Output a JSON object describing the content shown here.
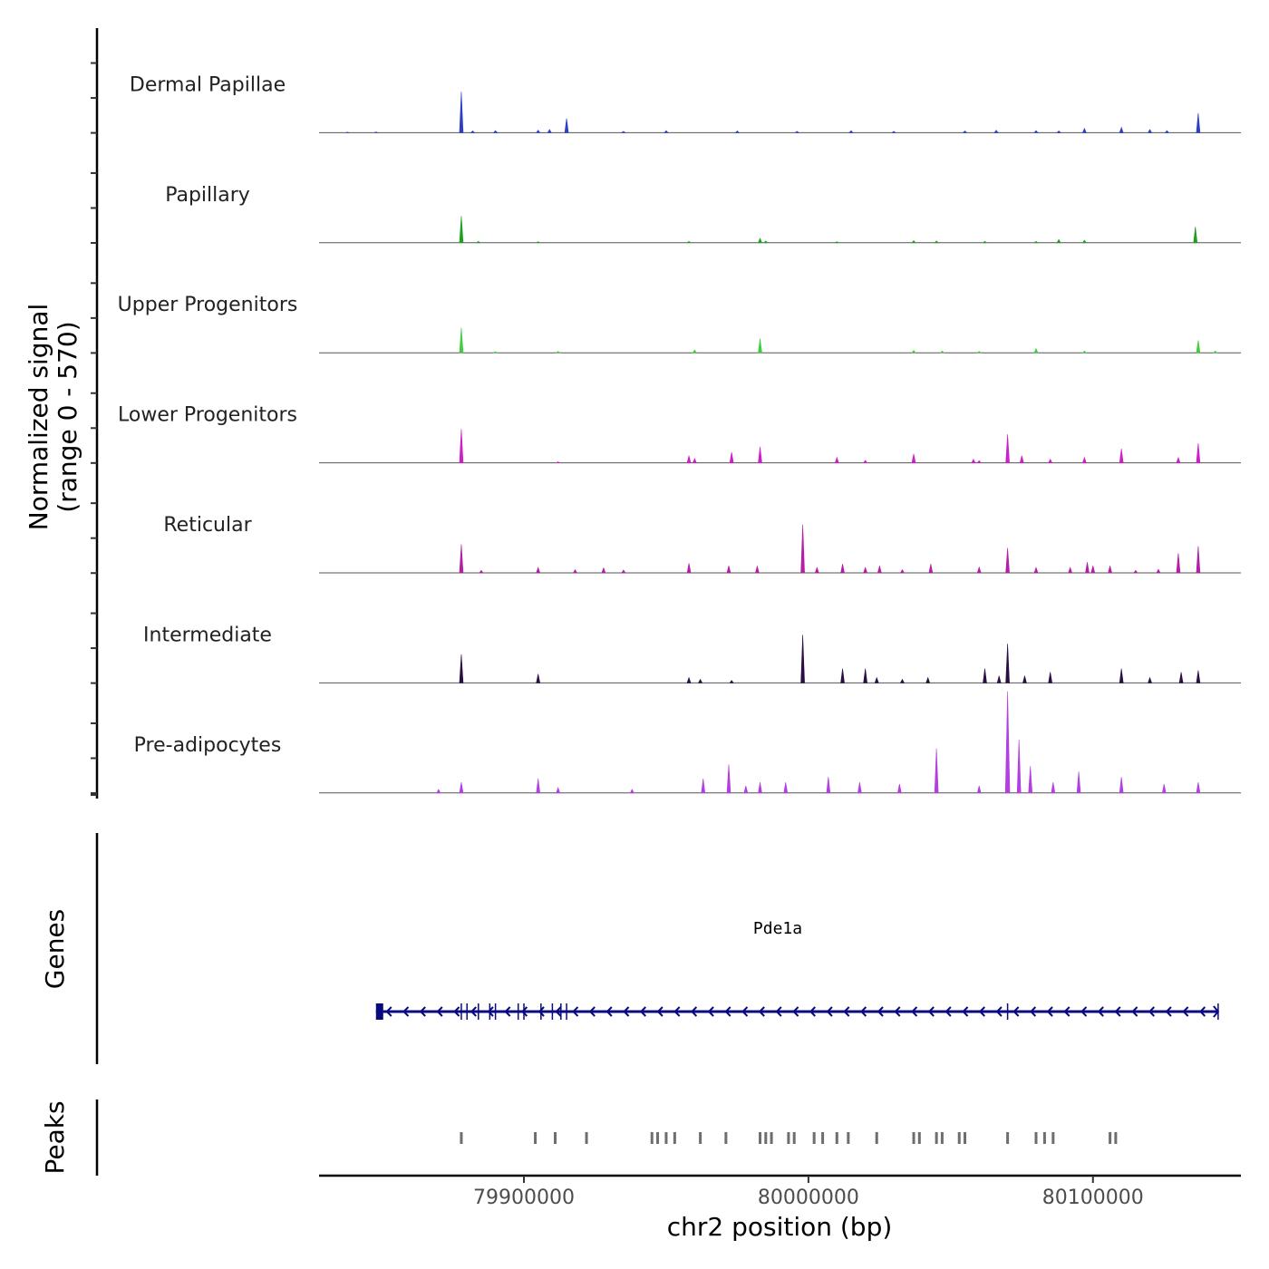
{
  "chart_data": {
    "type": "coverage",
    "chromosome": "chr2",
    "xlabel": "chr2 position (bp)",
    "xlim": [
      79828000,
      80152000
    ],
    "x_ticks": [
      {
        "value": 79900000,
        "label": "79900000"
      },
      {
        "value": 80000000,
        "label": "80000000"
      },
      {
        "value": 80100000,
        "label": "80100000"
      }
    ],
    "ylabel_line1": "Normalized signal",
    "ylabel_line2": "(range 0 - 570)",
    "ylim": [
      0,
      570
    ],
    "gene_track_label": "Genes",
    "peak_track_label": "Peaks",
    "series": [
      {
        "name": "Dermal Papillae",
        "color": "#2b3fc7",
        "peaks": [
          [
            79838000,
            3
          ],
          [
            79848000,
            4
          ],
          [
            79878000,
            230
          ],
          [
            79882000,
            10
          ],
          [
            79890000,
            12
          ],
          [
            79905000,
            14
          ],
          [
            79909000,
            18
          ],
          [
            79915000,
            80
          ],
          [
            79935000,
            8
          ],
          [
            79950000,
            12
          ],
          [
            79975000,
            10
          ],
          [
            79996000,
            8
          ],
          [
            80015000,
            12
          ],
          [
            80030000,
            8
          ],
          [
            80055000,
            10
          ],
          [
            80066000,
            14
          ],
          [
            80080000,
            12
          ],
          [
            80088000,
            10
          ],
          [
            80097000,
            24
          ],
          [
            80110000,
            30
          ],
          [
            80120000,
            18
          ],
          [
            80126000,
            12
          ],
          [
            80137000,
            110
          ]
        ]
      },
      {
        "name": "Papillary",
        "color": "#1f9e1f",
        "peaks": [
          [
            79878000,
            150
          ],
          [
            79884000,
            8
          ],
          [
            79905000,
            6
          ],
          [
            79958000,
            8
          ],
          [
            79983000,
            25
          ],
          [
            79985000,
            10
          ],
          [
            80010000,
            6
          ],
          [
            80037000,
            12
          ],
          [
            80045000,
            10
          ],
          [
            80062000,
            8
          ],
          [
            80080000,
            8
          ],
          [
            80088000,
            18
          ],
          [
            80097000,
            14
          ],
          [
            80136000,
            90
          ]
        ]
      },
      {
        "name": "Upper Progenitors",
        "color": "#3fce3f",
        "peaks": [
          [
            79878000,
            140
          ],
          [
            79890000,
            6
          ],
          [
            79912000,
            8
          ],
          [
            79960000,
            16
          ],
          [
            79983000,
            80
          ],
          [
            80037000,
            14
          ],
          [
            80047000,
            10
          ],
          [
            80060000,
            8
          ],
          [
            80080000,
            24
          ],
          [
            80097000,
            10
          ],
          [
            80137000,
            70
          ],
          [
            80143000,
            10
          ]
        ]
      },
      {
        "name": "Lower Progenitors",
        "color": "#cf1ec9",
        "peaks": [
          [
            79878000,
            190
          ],
          [
            79912000,
            6
          ],
          [
            79958000,
            40
          ],
          [
            79960000,
            24
          ],
          [
            79973000,
            60
          ],
          [
            79983000,
            90
          ],
          [
            80010000,
            30
          ],
          [
            80020000,
            14
          ],
          [
            80037000,
            50
          ],
          [
            80058000,
            20
          ],
          [
            80060000,
            12
          ],
          [
            80070000,
            160
          ],
          [
            80075000,
            40
          ],
          [
            80085000,
            20
          ],
          [
            80097000,
            30
          ],
          [
            80110000,
            80
          ],
          [
            80130000,
            30
          ],
          [
            80137000,
            110
          ]
        ]
      },
      {
        "name": "Reticular",
        "color": "#b21fa6",
        "peaks": [
          [
            79878000,
            160
          ],
          [
            79885000,
            14
          ],
          [
            79905000,
            30
          ],
          [
            79918000,
            18
          ],
          [
            79928000,
            28
          ],
          [
            79935000,
            16
          ],
          [
            79958000,
            54
          ],
          [
            79972000,
            40
          ],
          [
            79982000,
            38
          ],
          [
            79998000,
            270
          ],
          [
            80003000,
            30
          ],
          [
            80012000,
            50
          ],
          [
            80020000,
            30
          ],
          [
            80025000,
            40
          ],
          [
            80033000,
            18
          ],
          [
            80043000,
            50
          ],
          [
            80060000,
            32
          ],
          [
            80070000,
            140
          ],
          [
            80080000,
            30
          ],
          [
            80092000,
            30
          ],
          [
            80098000,
            60
          ],
          [
            80100000,
            40
          ],
          [
            80106000,
            40
          ],
          [
            80115000,
            14
          ],
          [
            80123000,
            20
          ],
          [
            80130000,
            110
          ],
          [
            80137000,
            150
          ]
        ]
      },
      {
        "name": "Intermediate",
        "color": "#2a0f42",
        "peaks": [
          [
            79878000,
            160
          ],
          [
            79905000,
            50
          ],
          [
            79958000,
            30
          ],
          [
            79962000,
            20
          ],
          [
            79973000,
            14
          ],
          [
            79998000,
            270
          ],
          [
            80012000,
            80
          ],
          [
            80020000,
            80
          ],
          [
            80024000,
            30
          ],
          [
            80033000,
            20
          ],
          [
            80042000,
            30
          ],
          [
            80062000,
            80
          ],
          [
            80067000,
            40
          ],
          [
            80070000,
            220
          ],
          [
            80076000,
            40
          ],
          [
            80085000,
            60
          ],
          [
            80110000,
            80
          ],
          [
            80120000,
            30
          ],
          [
            80131000,
            60
          ],
          [
            80137000,
            70
          ]
        ]
      },
      {
        "name": "Pre-adipocytes",
        "color": "#b33fe0",
        "peaks": [
          [
            79870000,
            20
          ],
          [
            79878000,
            60
          ],
          [
            79905000,
            80
          ],
          [
            79912000,
            30
          ],
          [
            79938000,
            20
          ],
          [
            79963000,
            80
          ],
          [
            79972000,
            160
          ],
          [
            79978000,
            40
          ],
          [
            79983000,
            60
          ],
          [
            79992000,
            60
          ],
          [
            80007000,
            90
          ],
          [
            80018000,
            60
          ],
          [
            80032000,
            50
          ],
          [
            80045000,
            250
          ],
          [
            80060000,
            40
          ],
          [
            80070000,
            570
          ],
          [
            80074000,
            300
          ],
          [
            80078000,
            150
          ],
          [
            80086000,
            60
          ],
          [
            80095000,
            120
          ],
          [
            80110000,
            90
          ],
          [
            80125000,
            50
          ],
          [
            80137000,
            60
          ]
        ]
      }
    ],
    "gene": {
      "name": "Pde1a",
      "start": 79848000,
      "end": 80144000,
      "strand": "-",
      "color": "#0a0a80"
    },
    "peaks": [
      79878000,
      79904000,
      79911000,
      79922000,
      79945000,
      79947000,
      79950000,
      79953000,
      79962000,
      79971000,
      79983000,
      79985000,
      79987000,
      79993000,
      79995000,
      80002000,
      80005000,
      80010000,
      80014000,
      80024000,
      80037000,
      80039000,
      80045000,
      80047000,
      80053000,
      80055000,
      80070000,
      80080000,
      80083000,
      80086000,
      80106000,
      80108000
    ]
  }
}
